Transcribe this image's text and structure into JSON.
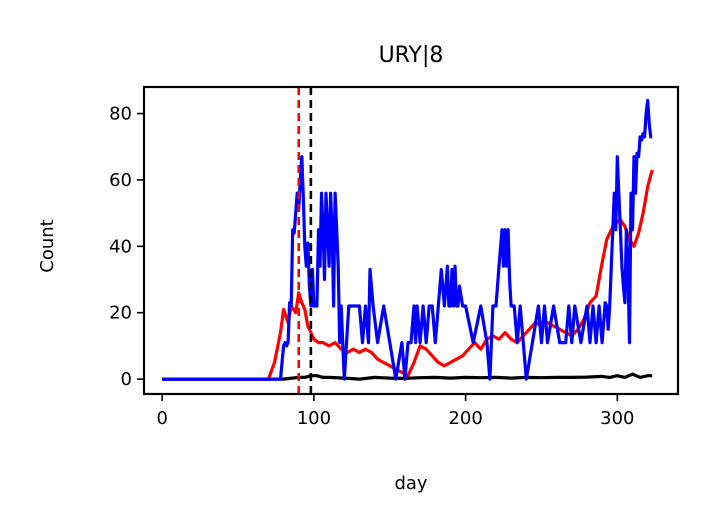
{
  "chart_data": {
    "type": "line",
    "title": "URY|8",
    "xlabel": "day",
    "ylabel": "Count",
    "xlim": [
      -12,
      340
    ],
    "ylim": [
      -4.5,
      88
    ],
    "xticks": [
      0,
      100,
      200,
      300
    ],
    "yticks": [
      0,
      20,
      40,
      60,
      80
    ],
    "grid": false,
    "legend": "none",
    "vlines": [
      {
        "x": 90,
        "color": "#ff0000",
        "style": "dashed"
      },
      {
        "x": 98,
        "color": "#000000",
        "style": "dashed"
      }
    ],
    "series": [
      {
        "color": "#ff0000",
        "x": [
          0,
          70,
          74,
          78,
          80,
          83,
          85,
          88,
          90,
          92,
          94,
          96,
          98,
          100,
          103,
          106,
          110,
          114,
          118,
          122,
          126,
          130,
          134,
          138,
          142,
          146,
          150,
          154,
          158,
          162,
          166,
          170,
          174,
          178,
          182,
          186,
          190,
          194,
          198,
          202,
          206,
          210,
          214,
          218,
          222,
          226,
          230,
          234,
          238,
          242,
          246,
          250,
          254,
          258,
          262,
          266,
          270,
          274,
          278,
          282,
          286,
          290,
          293,
          296,
          299,
          302,
          305,
          308,
          311,
          314,
          317,
          320,
          323
        ],
        "y": [
          0,
          0,
          5,
          14,
          21,
          17,
          22,
          20,
          26,
          23,
          21,
          16,
          14,
          12,
          11,
          11,
          10,
          11,
          9,
          8,
          9,
          8,
          9,
          8,
          6,
          5,
          4,
          3,
          2,
          1,
          5,
          10,
          9,
          7,
          5,
          4,
          5,
          6,
          7,
          9,
          11,
          9,
          12,
          13,
          12,
          14,
          12,
          11,
          13,
          15,
          17,
          16,
          17,
          16,
          15,
          14,
          13,
          15,
          18,
          23,
          25,
          35,
          42,
          45,
          47,
          48,
          46,
          42,
          40,
          44,
          50,
          58,
          63
        ]
      },
      {
        "color": "#000000",
        "x": [
          0,
          80,
          90,
          94,
          98,
          102,
          106,
          110,
          120,
          130,
          140,
          150,
          160,
          170,
          180,
          190,
          200,
          210,
          220,
          230,
          240,
          250,
          260,
          270,
          280,
          290,
          295,
          300,
          305,
          310,
          315,
          320,
          323
        ],
        "y": [
          0,
          0,
          0.5,
          0.5,
          1,
          1,
          0.5,
          0.5,
          0.3,
          0,
          0.5,
          0.3,
          0.2,
          0.4,
          0.5,
          0.3,
          0.5,
          0.4,
          0.5,
          0.3,
          0.5,
          0.4,
          0.5,
          0.5,
          0.6,
          0.8,
          0.5,
          1,
          0.5,
          1.5,
          0.5,
          1,
          1
        ]
      },
      {
        "color": "#0000ff",
        "x": [
          0,
          78,
          80,
          81,
          82,
          83,
          84,
          85,
          86,
          87,
          88,
          89,
          90,
          91,
          92,
          93,
          94,
          95,
          96,
          97,
          98,
          99,
          100,
          102,
          103,
          104,
          105,
          106,
          107,
          108,
          109,
          110,
          111,
          112,
          113,
          114,
          115,
          116,
          117,
          118,
          119,
          120,
          123,
          126,
          130,
          132,
          134,
          136,
          137,
          139,
          142,
          146,
          150,
          154,
          158,
          160,
          162,
          164,
          166,
          167,
          168,
          170,
          172,
          174,
          176,
          178,
          180,
          182,
          184,
          186,
          188,
          189,
          190,
          191,
          192,
          193,
          194,
          195,
          196,
          198,
          200,
          205,
          210,
          214,
          216,
          218,
          220,
          222,
          224,
          225,
          226,
          227,
          228,
          229,
          230,
          232,
          234,
          236,
          240,
          244,
          248,
          250,
          252,
          254,
          258,
          262,
          266,
          268,
          270,
          272,
          276,
          280,
          282,
          284,
          286,
          288,
          290,
          292,
          293,
          294,
          295,
          296,
          297,
          298,
          299,
          300,
          301,
          302,
          303,
          304,
          305,
          306,
          307,
          308,
          309,
          310,
          311,
          312,
          313,
          314,
          315,
          316,
          317,
          318,
          319,
          320,
          321,
          322,
          323
        ],
        "y": [
          0,
          0,
          10,
          11,
          10,
          11,
          23,
          22,
          45,
          44,
          50,
          56,
          51,
          60,
          67,
          55,
          40,
          34,
          41,
          28,
          22,
          33,
          22,
          22,
          45,
          34,
          56,
          45,
          30,
          56,
          45,
          34,
          56,
          45,
          22,
          56,
          45,
          34,
          11,
          22,
          11,
          0,
          22,
          22,
          22,
          11,
          22,
          11,
          33,
          22,
          11,
          22,
          11,
          0,
          11,
          0,
          11,
          11,
          22,
          11,
          22,
          11,
          22,
          11,
          22,
          22,
          11,
          22,
          33,
          22,
          34,
          22,
          22,
          33,
          22,
          34,
          22,
          22,
          28,
          22,
          22,
          11,
          22,
          11,
          0,
          22,
          22,
          34,
          45,
          34,
          45,
          34,
          45,
          30,
          22,
          22,
          11,
          22,
          0,
          11,
          22,
          11,
          22,
          11,
          22,
          11,
          11,
          22,
          11,
          22,
          11,
          22,
          11,
          22,
          11,
          22,
          11,
          23,
          22,
          15,
          22,
          34,
          45,
          56,
          45,
          67,
          56,
          45,
          34,
          28,
          23,
          45,
          34,
          11,
          56,
          45,
          67,
          56,
          68,
          67,
          73,
          72,
          74,
          73,
          80,
          84,
          77,
          73,
          73
        ]
      }
    ]
  }
}
